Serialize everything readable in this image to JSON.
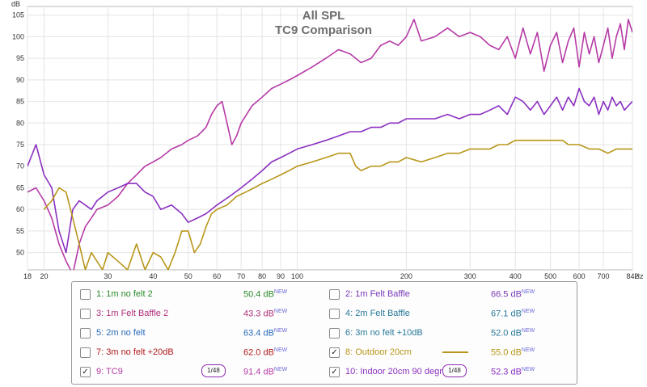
{
  "chart_data": {
    "type": "line",
    "title": "All SPL",
    "subtitle": "TC9 Comparison",
    "ylabel": "dB",
    "xunit": "Hz",
    "x_scale": "log",
    "xlim": [
      18,
      842
    ],
    "ylim": [
      46,
      107
    ],
    "x_ticks": [
      18,
      20,
      30,
      40,
      50,
      60,
      70,
      80,
      90,
      100,
      200,
      300,
      400,
      500,
      600,
      700,
      842
    ],
    "x_tick_labels": [
      "18",
      "20",
      "30",
      "40",
      "50",
      "60",
      "70",
      "80",
      "90",
      "100",
      "200",
      "300",
      "400",
      "500",
      "600",
      "700",
      "842"
    ],
    "y_ticks": [
      50,
      55,
      60,
      65,
      70,
      75,
      80,
      85,
      90,
      95,
      100,
      105
    ],
    "grid": true,
    "series": [
      {
        "name": "9: TC9",
        "color": "#b63aa6",
        "x": [
          18,
          19,
          20,
          21,
          22,
          23,
          24,
          25,
          26,
          27,
          28,
          30,
          32,
          34,
          36,
          38,
          40,
          42,
          45,
          48,
          50,
          53,
          56,
          58,
          60,
          62,
          64,
          66,
          68,
          70,
          75,
          80,
          85,
          90,
          95,
          100,
          110,
          120,
          130,
          140,
          150,
          160,
          170,
          180,
          190,
          200,
          210,
          220,
          240,
          260,
          280,
          300,
          320,
          340,
          360,
          380,
          400,
          420,
          440,
          460,
          480,
          500,
          520,
          540,
          560,
          580,
          600,
          620,
          640,
          660,
          680,
          700,
          720,
          740,
          760,
          780,
          800,
          820,
          842
        ],
        "y": [
          64,
          65,
          62,
          58,
          52,
          48,
          45,
          52,
          56,
          58,
          60,
          61,
          63,
          66,
          68,
          70,
          71,
          72,
          74,
          75,
          76,
          77,
          79,
          82,
          84,
          85,
          80,
          75,
          77,
          80,
          84,
          86,
          88,
          89,
          90,
          91,
          93,
          95,
          97,
          96,
          94,
          95,
          98,
          99,
          98,
          100,
          104,
          99,
          100,
          102,
          100,
          101,
          100,
          98,
          97,
          100,
          95,
          102,
          96,
          101,
          92,
          98,
          101,
          94,
          99,
          102,
          93,
          101,
          96,
          100,
          94,
          98,
          102,
          95,
          100,
          103,
          97,
          104,
          101
        ]
      },
      {
        "name": "10: Indoor 20cm 90 degre",
        "color": "#8a2fc0",
        "x": [
          18,
          19,
          20,
          21,
          22,
          23,
          24,
          25,
          26,
          27,
          28,
          30,
          32,
          34,
          36,
          38,
          40,
          42,
          45,
          48,
          50,
          53,
          56,
          60,
          65,
          70,
          75,
          80,
          85,
          90,
          95,
          100,
          110,
          120,
          130,
          140,
          150,
          160,
          170,
          180,
          190,
          200,
          220,
          240,
          260,
          280,
          300,
          320,
          340,
          360,
          380,
          400,
          420,
          440,
          460,
          480,
          500,
          520,
          540,
          560,
          580,
          600,
          620,
          640,
          660,
          680,
          700,
          720,
          740,
          760,
          780,
          800,
          820,
          842
        ],
        "y": [
          70,
          75,
          68,
          65,
          55,
          50,
          60,
          62,
          61,
          60,
          62,
          64,
          65,
          66,
          66,
          64,
          63,
          60,
          61,
          59,
          57,
          58,
          59,
          61,
          63,
          65,
          67,
          69,
          71,
          72,
          73,
          74,
          75,
          76,
          77,
          78,
          78,
          79,
          79,
          80,
          80,
          81,
          81,
          81,
          82,
          81,
          82,
          82,
          83,
          84,
          82,
          86,
          85,
          83,
          85,
          82,
          84,
          86,
          83,
          86,
          84,
          88,
          85,
          84,
          86,
          82,
          85,
          83,
          86,
          84,
          85,
          83,
          84,
          85
        ]
      },
      {
        "name": "8: Outdoor 20cm",
        "color": "#b8961a",
        "x": [
          20,
          21,
          22,
          23,
          24,
          25,
          26,
          27,
          28,
          29,
          30,
          32,
          34,
          36,
          38,
          40,
          42,
          44,
          46,
          48,
          50,
          52,
          54,
          56,
          58,
          60,
          64,
          68,
          72,
          76,
          80,
          85,
          90,
          95,
          100,
          110,
          120,
          130,
          140,
          145,
          150,
          160,
          170,
          180,
          190,
          200,
          220,
          240,
          260,
          280,
          300,
          320,
          340,
          360,
          380,
          400,
          420,
          440,
          460,
          480,
          500,
          520,
          540,
          560,
          580,
          600,
          640,
          680,
          720,
          760,
          800,
          842
        ],
        "y": [
          60,
          62,
          65,
          64,
          58,
          52,
          46,
          50,
          48,
          46,
          50,
          48,
          46,
          52,
          46,
          50,
          49,
          46,
          50,
          55,
          55,
          50,
          52,
          56,
          59,
          60,
          61,
          63,
          64,
          65,
          66,
          67,
          68,
          69,
          70,
          71,
          72,
          73,
          73,
          70,
          69,
          70,
          70,
          71,
          71,
          72,
          71,
          72,
          73,
          73,
          74,
          74,
          74,
          75,
          75,
          76,
          76,
          76,
          76,
          76,
          76,
          76,
          76,
          75,
          75,
          75,
          74,
          74,
          73,
          74,
          74,
          74
        ]
      }
    ]
  },
  "legend": [
    {
      "name": "1: 1m no felt 2",
      "value": "50.4 dB",
      "badge": "NEW",
      "checked": false,
      "color": "#2a8a2a"
    },
    {
      "name": "2: 1m Felt Baffle",
      "value": "66.5 dB",
      "badge": "NEW",
      "checked": false,
      "color": "#7a3ab8"
    },
    {
      "name": "3: 1m Felt Baffle 2",
      "value": "43.3 dB",
      "badge": "NEW",
      "checked": false,
      "color": "#b0307a"
    },
    {
      "name": "4: 2m Felt Baffle",
      "value": "67.1 dB",
      "badge": "NEW",
      "checked": false,
      "color": "#2a7a9a"
    },
    {
      "name": "5: 2m no felt",
      "value": "63.4 dB",
      "badge": "NEW",
      "checked": false,
      "color": "#2a6ab8"
    },
    {
      "name": "6: 3m no felt +10dB",
      "value": "52.0 dB",
      "badge": "NEW",
      "checked": false,
      "color": "#2a7a9a"
    },
    {
      "name": "7: 3m no felt +20dB",
      "value": "62.0 dB",
      "badge": "NEW",
      "checked": false,
      "color": "#b01a1a"
    },
    {
      "name": "8: Outdoor 20cm",
      "value": "55.0 dB",
      "badge": "NEW",
      "checked": true,
      "color": "#b8961a",
      "swatch": "#b8961a"
    },
    {
      "name": "9: TC9",
      "value": "91.4 dB",
      "badge": "NEW",
      "checked": true,
      "color": "#b63aa6",
      "smoothing": "1/48"
    },
    {
      "name": "10: Indoor 20cm 90 degre",
      "value": "52.3 dB",
      "badge": "NEW",
      "checked": true,
      "color": "#8a2fc0",
      "smoothing": "1/48"
    }
  ]
}
